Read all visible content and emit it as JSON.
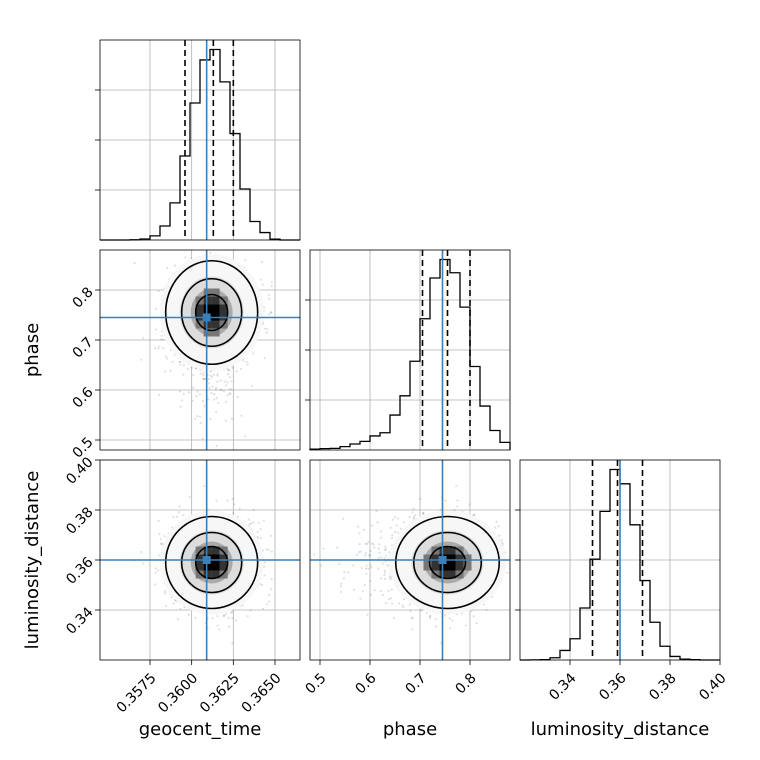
{
  "chart_data": {
    "type": "corner",
    "parameters": [
      {
        "name": "geocent_time",
        "label": "geocent_time",
        "range": [
          0.3545,
          0.3665
        ],
        "ticks": [
          0.3575,
          0.36,
          0.3625,
          0.365
        ],
        "tick_labels": [
          "0.3575",
          "0.3600",
          "0.3625",
          "0.3650"
        ],
        "median": 0.3612,
        "sigma": 0.0012,
        "quantiles": [
          0.3596,
          0.3613,
          0.3625
        ],
        "truth": 0.3609
      },
      {
        "name": "phase",
        "label": "phase",
        "range": [
          0.48,
          0.88
        ],
        "ticks": [
          0.5,
          0.6,
          0.7,
          0.8
        ],
        "tick_labels": [
          "0.5",
          "0.6",
          "0.7",
          "0.8"
        ],
        "median": 0.755,
        "sigma": 0.045,
        "quantiles": [
          0.705,
          0.755,
          0.8
        ],
        "truth": 0.745
      },
      {
        "name": "luminosity_distance",
        "label": "luminosity_distance",
        "range": [
          0.32,
          0.4
        ],
        "ticks": [
          0.34,
          0.36,
          0.38,
          0.4
        ],
        "tick_labels": [
          "0.34",
          "0.36",
          "0.38",
          "0.40"
        ],
        "median": 0.359,
        "sigma": 0.008,
        "quantiles": [
          0.349,
          0.359,
          0.369
        ],
        "truth": 0.36
      }
    ],
    "grid": true,
    "contour_levels": [
      0.39,
      0.86,
      0.99
    ]
  }
}
